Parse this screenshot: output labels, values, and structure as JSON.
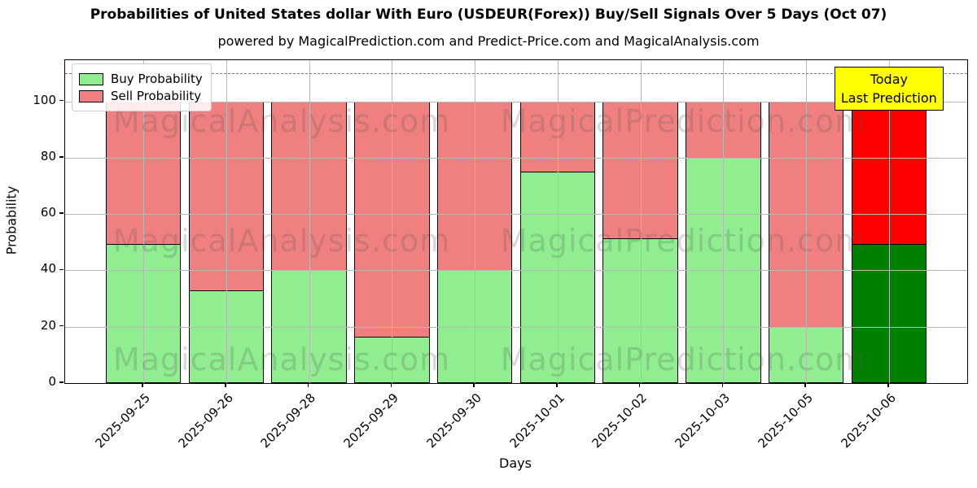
{
  "chart_data": {
    "type": "bar",
    "stacked": true,
    "title": "Probabilities of United States dollar With Euro (USDEUR(Forex)) Buy/Sell Signals Over 5 Days (Oct 07)",
    "subtitle": "powered by MagicalPrediction.com and Predict-Price.com and MagicalAnalysis.com",
    "xlabel": "Days",
    "ylabel": "Probability",
    "categories": [
      "2025-09-25",
      "2025-09-26",
      "2025-09-28",
      "2025-09-29",
      "2025-09-30",
      "2025-10-01",
      "2025-10-02",
      "2025-10-03",
      "2025-10-05",
      "2025-10-06"
    ],
    "series": [
      {
        "name": "Buy Probability",
        "values": [
          49.5,
          33,
          40,
          16.5,
          40,
          75,
          51.5,
          80,
          20,
          49.5
        ]
      },
      {
        "name": "Sell Probability",
        "values": [
          50.5,
          67,
          60,
          83.5,
          60,
          25,
          48.5,
          20,
          80,
          50.5
        ]
      }
    ],
    "colors": {
      "buy": "#90EE90",
      "sell": "#F08080",
      "today_buy": "#008000",
      "today_sell": "#FF0000",
      "edge": "#000000",
      "grid": "#b8b8b8",
      "dashed_line": "#7f7f7f",
      "annotation_bg": "#FFFF00"
    },
    "today_index": 9,
    "yticks": [
      0,
      20,
      40,
      60,
      80,
      100
    ],
    "ylim": [
      0,
      114.6
    ],
    "dashed_line_y": 110,
    "grid": true,
    "legend_position": "upper left",
    "annotation": {
      "lines": [
        "Today",
        "Last Prediction"
      ]
    },
    "watermarks": {
      "left_text": "MagicalAnalysis.com",
      "right_text": "MagicalPrediction.com"
    }
  }
}
